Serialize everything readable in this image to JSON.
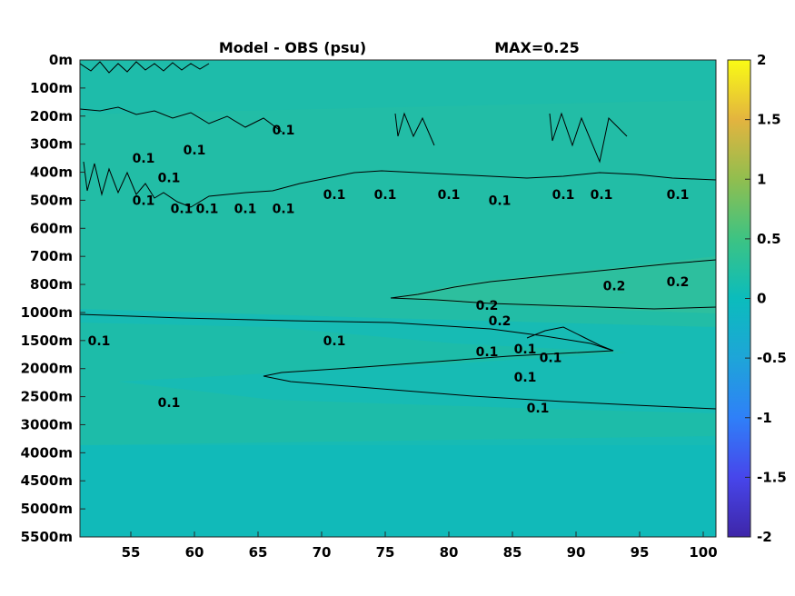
{
  "chart_data": {
    "type": "heatmap",
    "title": "Model - OBS (psu)",
    "annotation": "MAX=0.25",
    "x_ticks": [
      55,
      60,
      65,
      70,
      75,
      80,
      85,
      90,
      95,
      100
    ],
    "xlim": [
      51,
      101
    ],
    "y_ticks": [
      "0m",
      "100m",
      "200m",
      "300m",
      "400m",
      "500m",
      "600m",
      "700m",
      "800m",
      "1000m",
      "1500m",
      "2000m",
      "2500m",
      "3000m",
      "4000m",
      "4500m",
      "5000m",
      "5500m"
    ],
    "colorbar": {
      "ticks": [
        "2",
        "1.5",
        "1",
        "0.5",
        "0",
        "-0.5",
        "-1",
        "-1.5",
        "-2"
      ],
      "range": [
        -2,
        2
      ],
      "colormap": "parula"
    },
    "max_value": 0.25,
    "contours": [
      {
        "level": 0.1,
        "label": "0.1",
        "label_positions": [
          [
            52.5,
            1500
          ],
          [
            58,
            2600
          ],
          [
            71,
            1500
          ],
          [
            86,
            2150
          ],
          [
            86,
            1650
          ],
          [
            87,
            2700
          ],
          [
            83,
            1700
          ],
          [
            88,
            1800
          ],
          [
            56,
            350
          ],
          [
            60,
            320
          ],
          [
            67,
            250
          ],
          [
            58,
            420
          ],
          [
            56,
            500
          ],
          [
            59,
            530
          ],
          [
            61,
            530
          ],
          [
            64,
            530
          ],
          [
            67,
            530
          ],
          [
            71,
            480
          ],
          [
            75,
            480
          ],
          [
            80,
            480
          ],
          [
            84,
            500
          ],
          [
            89,
            480
          ],
          [
            92,
            480
          ],
          [
            98,
            480
          ]
        ]
      },
      {
        "level": 0.2,
        "label": "0.2",
        "label_positions": [
          [
            83,
            950
          ],
          [
            84,
            1150
          ],
          [
            93,
            810
          ],
          [
            98,
            790
          ]
        ]
      }
    ]
  }
}
